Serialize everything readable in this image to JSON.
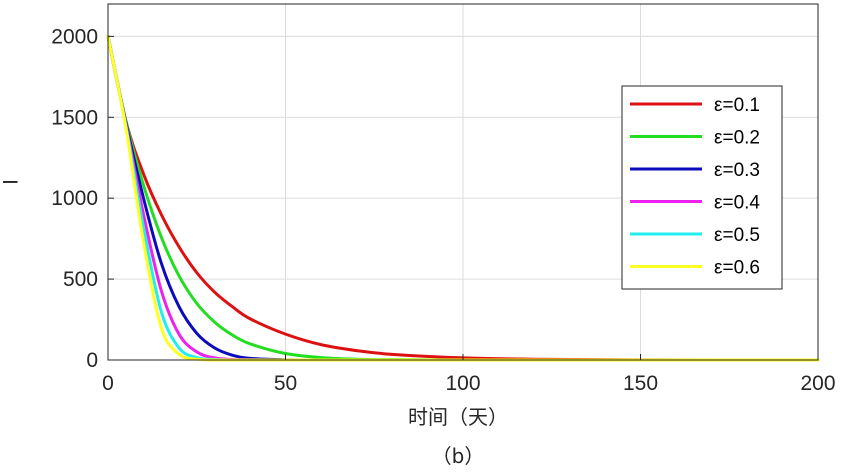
{
  "chart_data": {
    "type": "line",
    "title": "",
    "xlabel": "时间（天）",
    "ylabel": "I",
    "caption": "（b）",
    "xlim": [
      0,
      200
    ],
    "ylim": [
      0,
      2200
    ],
    "xticks": [
      "0",
      "50",
      "100",
      "150",
      "200"
    ],
    "yticks": [
      "0",
      "500",
      "1000",
      "1500",
      "2000"
    ],
    "grid": true,
    "legend_position": "top-right",
    "x": [
      0,
      5,
      10,
      15,
      20,
      25,
      30,
      35,
      40,
      50,
      60,
      70,
      80,
      100,
      120,
      150,
      200
    ],
    "series": [
      {
        "name": "ε=0.1",
        "color": "#dd1111",
        "values": [
          2000,
          1480,
          1150,
          900,
          700,
          540,
          420,
          330,
          255,
          160,
          95,
          58,
          35,
          13,
          5,
          1,
          0
        ]
      },
      {
        "name": "ε=0.2",
        "color": "#22dd22",
        "values": [
          2000,
          1480,
          1080,
          760,
          520,
          350,
          235,
          155,
          100,
          40,
          15,
          5,
          2,
          0,
          0,
          0,
          0
        ]
      },
      {
        "name": "ε=0.3",
        "color": "#0b0bbb",
        "values": [
          2000,
          1470,
          1000,
          600,
          330,
          165,
          75,
          30,
          10,
          1,
          0,
          0,
          0,
          0,
          0,
          0,
          0
        ]
      },
      {
        "name": "ε=0.4",
        "color": "#ee22ee",
        "values": [
          2000,
          1460,
          900,
          430,
          160,
          50,
          13,
          3,
          1,
          0,
          0,
          0,
          0,
          0,
          0,
          0,
          0
        ]
      },
      {
        "name": "ε=0.5",
        "color": "#22eeee",
        "values": [
          2000,
          1450,
          820,
          300,
          75,
          15,
          3,
          0,
          0,
          0,
          0,
          0,
          0,
          0,
          0,
          0,
          0
        ]
      },
      {
        "name": "ε=0.6",
        "color": "#ffff22",
        "values": [
          2000,
          1440,
          730,
          200,
          35,
          5,
          0,
          0,
          0,
          0,
          0,
          0,
          0,
          0,
          0,
          0,
          0
        ]
      }
    ]
  }
}
